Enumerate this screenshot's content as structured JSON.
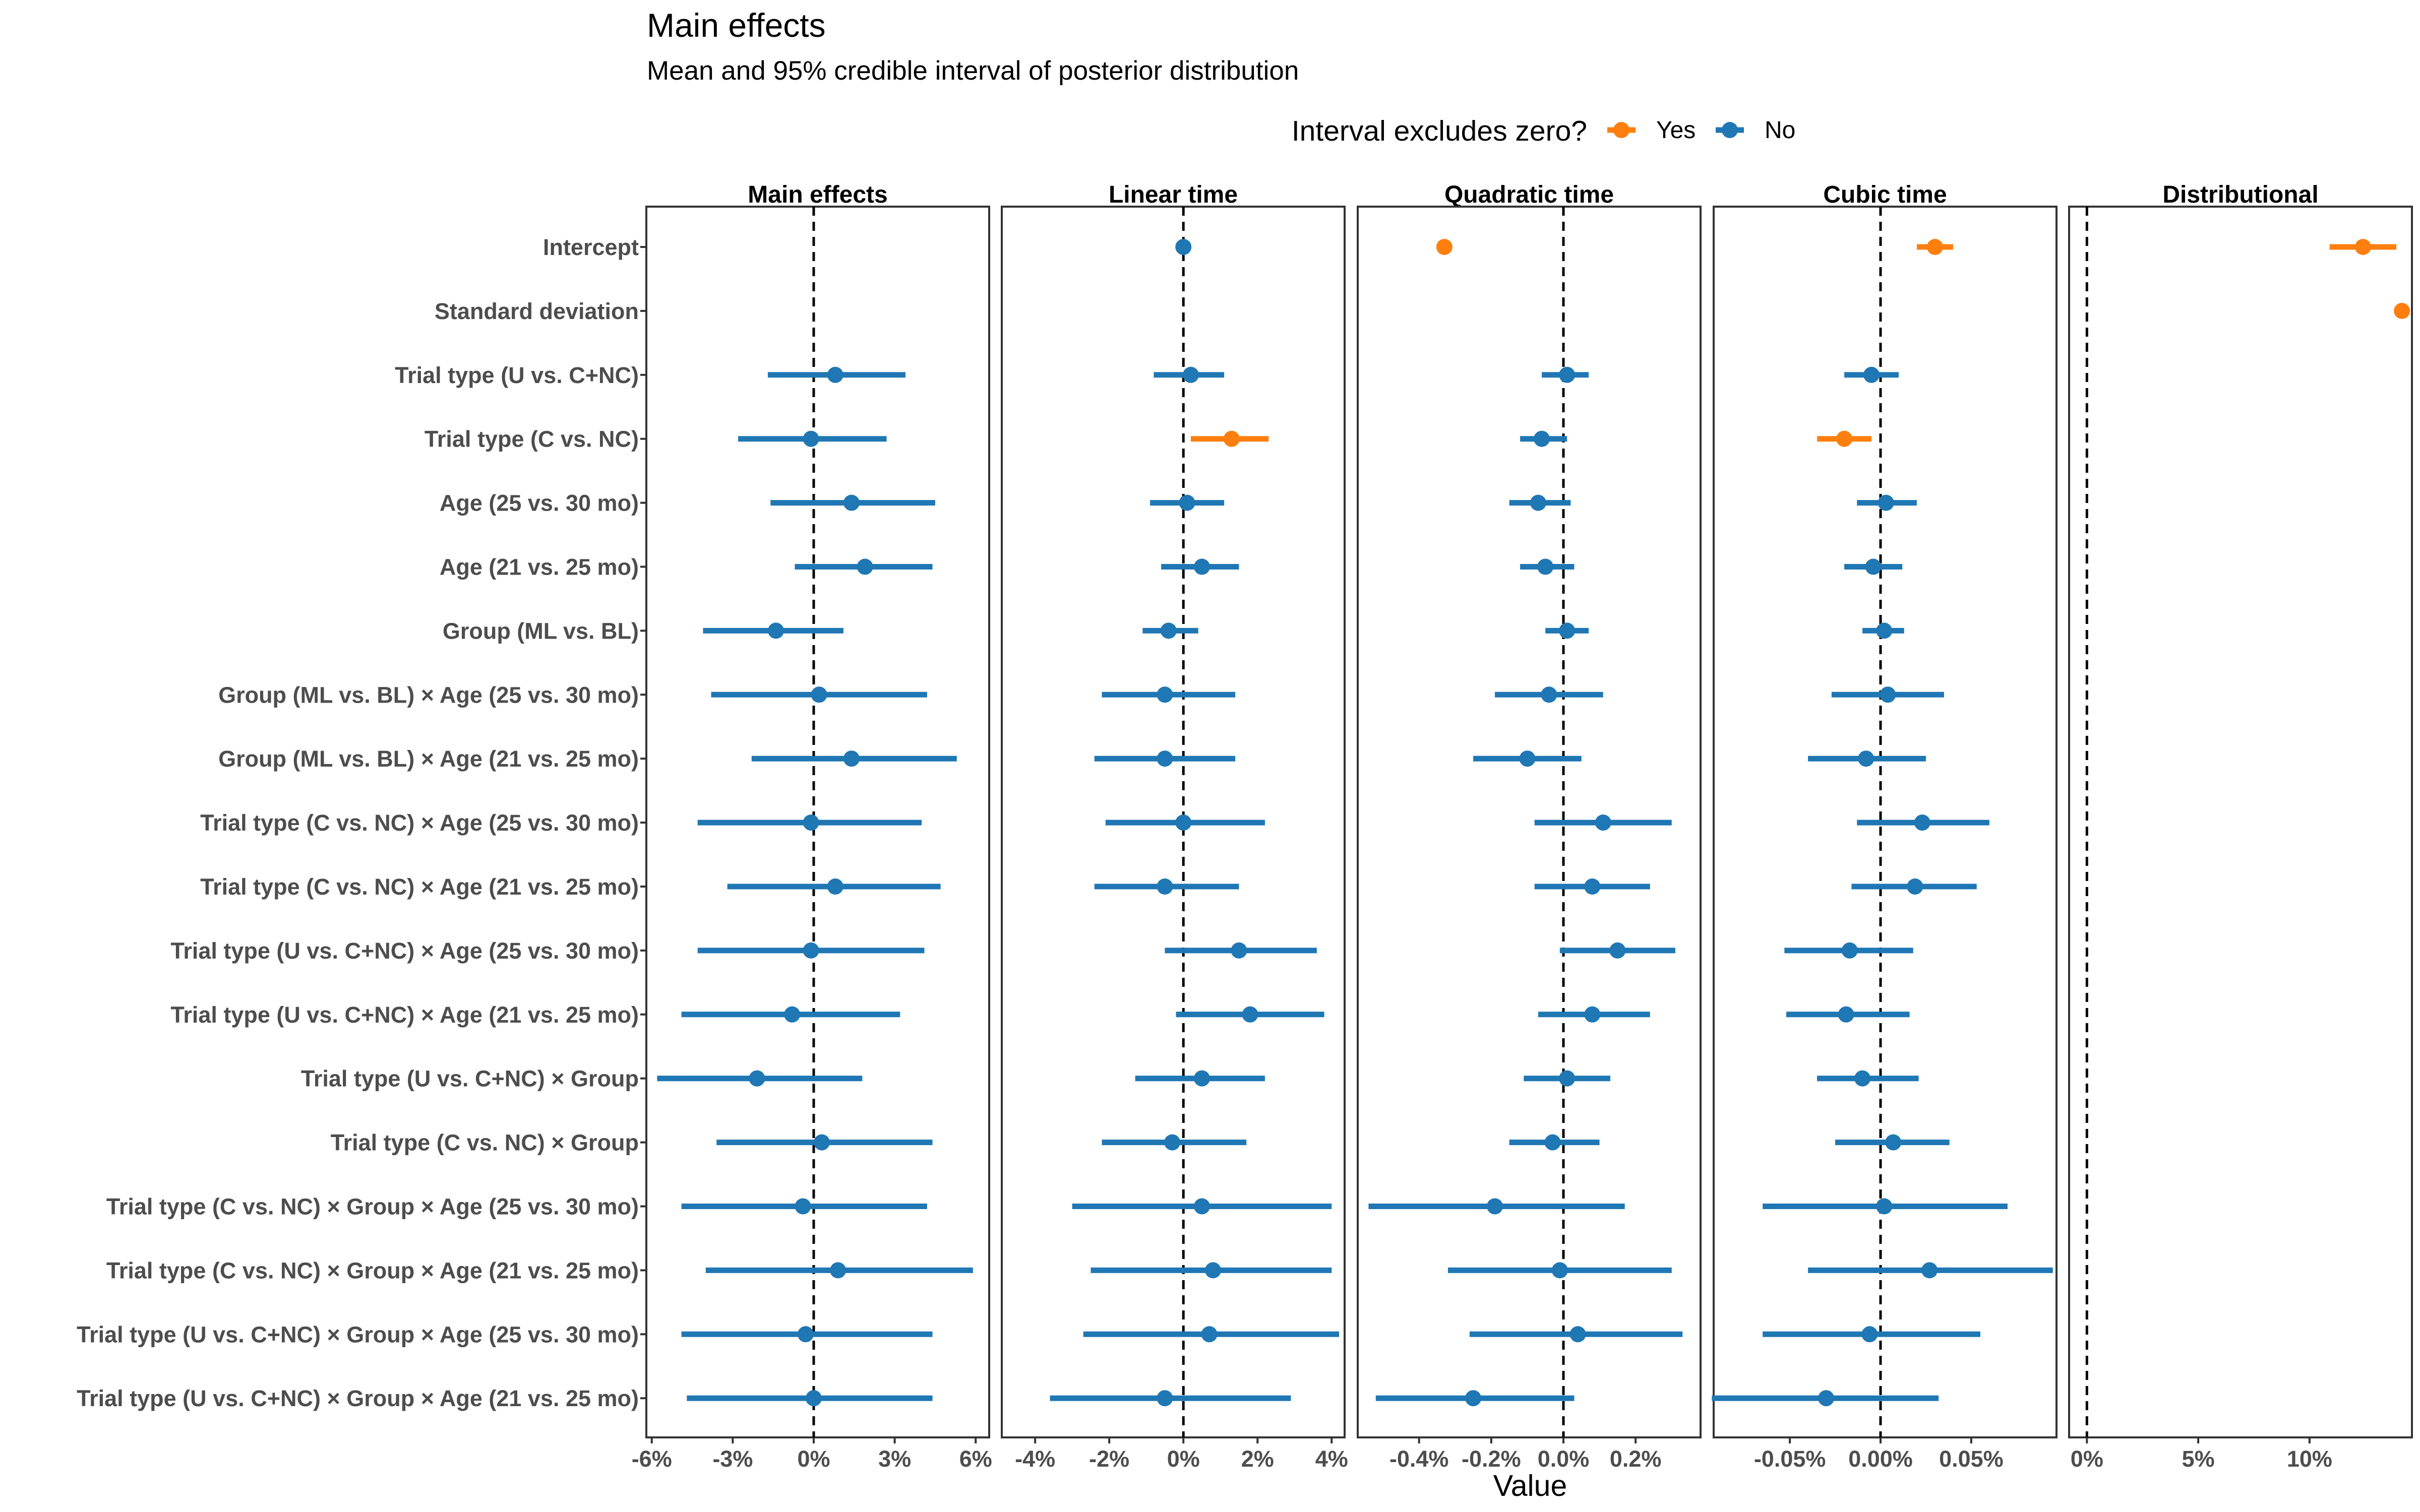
{
  "chart_data": {
    "type": "forest",
    "title": "Main effects",
    "subtitle": "Mean and 95% credible interval of posterior distribution",
    "xlabel": "Value",
    "legend": {
      "title": "Interval excludes zero?",
      "position": "top",
      "entries": [
        {
          "label": "Yes",
          "color": "#ff7f0e"
        },
        {
          "label": "No",
          "color": "#1f77b4"
        }
      ]
    },
    "colors": {
      "Yes": "#ff7f0e",
      "No": "#1f77b4"
    },
    "rows": [
      "Intercept",
      "Standard deviation",
      "Trial type (U vs. C+NC)",
      "Trial type (C vs. NC)",
      "Age (25 vs. 30 mo)",
      "Age (21 vs. 25 mo)",
      "Group (ML vs. BL)",
      "Group (ML vs. BL) × Age (25 vs. 30 mo)",
      "Group (ML vs. BL) × Age (21 vs. 25 mo)",
      "Trial type (C vs. NC) × Age (25 vs. 30 mo)",
      "Trial type (C vs. NC) × Age (21 vs. 25 mo)",
      "Trial type (U vs. C+NC) × Age (25 vs. 30 mo)",
      "Trial type (U vs. C+NC) × Age (21 vs. 25 mo)",
      "Trial type (U vs. C+NC) × Group",
      "Trial type (C vs. NC) × Group",
      "Trial type (C vs. NC) × Group × Age (25 vs. 30 mo)",
      "Trial type (C vs. NC) × Group × Age (21 vs. 25 mo)",
      "Trial type (U vs. C+NC) × Group × Age (25 vs. 30 mo)",
      "Trial type (U vs. C+NC) × Group × Age (21 vs. 25 mo)"
    ],
    "facets": [
      {
        "name": "Main effects",
        "xlim": [
          -0.062,
          0.065
        ],
        "ticks": [
          -0.06,
          -0.03,
          0,
          0.03,
          0.06
        ],
        "tick_labels": [
          "-6%",
          "-3%",
          "0%",
          "3%",
          "6%"
        ],
        "points": [
          {
            "row": "Trial type (U vs. C+NC)",
            "mean": 0.008,
            "lo": -0.017,
            "hi": 0.034,
            "excludes_zero": "No"
          },
          {
            "row": "Trial type (C vs. NC)",
            "mean": -0.001,
            "lo": -0.028,
            "hi": 0.027,
            "excludes_zero": "No"
          },
          {
            "row": "Age (25 vs. 30 mo)",
            "mean": 0.014,
            "lo": -0.016,
            "hi": 0.045,
            "excludes_zero": "No"
          },
          {
            "row": "Age (21 vs. 25 mo)",
            "mean": 0.019,
            "lo": -0.007,
            "hi": 0.044,
            "excludes_zero": "No"
          },
          {
            "row": "Group (ML vs. BL)",
            "mean": -0.014,
            "lo": -0.041,
            "hi": 0.011,
            "excludes_zero": "No"
          },
          {
            "row": "Group (ML vs. BL) × Age (25 vs. 30 mo)",
            "mean": 0.002,
            "lo": -0.038,
            "hi": 0.042,
            "excludes_zero": "No"
          },
          {
            "row": "Group (ML vs. BL) × Age (21 vs. 25 mo)",
            "mean": 0.014,
            "lo": -0.023,
            "hi": 0.053,
            "excludes_zero": "No"
          },
          {
            "row": "Trial type (C vs. NC) × Age (25 vs. 30 mo)",
            "mean": -0.001,
            "lo": -0.043,
            "hi": 0.04,
            "excludes_zero": "No"
          },
          {
            "row": "Trial type (C vs. NC) × Age (21 vs. 25 mo)",
            "mean": 0.008,
            "lo": -0.032,
            "hi": 0.047,
            "excludes_zero": "No"
          },
          {
            "row": "Trial type (U vs. C+NC) × Age (25 vs. 30 mo)",
            "mean": -0.001,
            "lo": -0.043,
            "hi": 0.041,
            "excludes_zero": "No"
          },
          {
            "row": "Trial type (U vs. C+NC) × Age (21 vs. 25 mo)",
            "mean": -0.008,
            "lo": -0.049,
            "hi": 0.032,
            "excludes_zero": "No"
          },
          {
            "row": "Trial type (U vs. C+NC) × Group",
            "mean": -0.021,
            "lo": -0.058,
            "hi": 0.018,
            "excludes_zero": "No"
          },
          {
            "row": "Trial type (C vs. NC) × Group",
            "mean": 0.003,
            "lo": -0.036,
            "hi": 0.044,
            "excludes_zero": "No"
          },
          {
            "row": "Trial type (C vs. NC) × Group × Age (25 vs. 30 mo)",
            "mean": -0.004,
            "lo": -0.049,
            "hi": 0.042,
            "excludes_zero": "No"
          },
          {
            "row": "Trial type (C vs. NC) × Group × Age (21 vs. 25 mo)",
            "mean": 0.009,
            "lo": -0.04,
            "hi": 0.059,
            "excludes_zero": "No"
          },
          {
            "row": "Trial type (U vs. C+NC) × Group × Age (25 vs. 30 mo)",
            "mean": -0.003,
            "lo": -0.049,
            "hi": 0.044,
            "excludes_zero": "No"
          },
          {
            "row": "Trial type (U vs. C+NC) × Group × Age (21 vs. 25 mo)",
            "mean": 0.0,
            "lo": -0.047,
            "hi": 0.044,
            "excludes_zero": "No"
          }
        ]
      },
      {
        "name": "Linear time",
        "xlim": [
          -0.049,
          0.0435
        ],
        "ticks": [
          -0.04,
          -0.02,
          0,
          0.02,
          0.04
        ],
        "tick_labels": [
          "-4%",
          "-2%",
          "0%",
          "2%",
          "4%"
        ],
        "points": [
          {
            "row": "Intercept",
            "mean": 0.0,
            "lo": -0.0015,
            "hi": 0.0015,
            "excludes_zero": "No"
          },
          {
            "row": "Trial type (U vs. C+NC)",
            "mean": 0.002,
            "lo": -0.008,
            "hi": 0.011,
            "excludes_zero": "No"
          },
          {
            "row": "Trial type (C vs. NC)",
            "mean": 0.013,
            "lo": 0.002,
            "hi": 0.023,
            "excludes_zero": "Yes"
          },
          {
            "row": "Age (25 vs. 30 mo)",
            "mean": 0.001,
            "lo": -0.009,
            "hi": 0.011,
            "excludes_zero": "No"
          },
          {
            "row": "Age (21 vs. 25 mo)",
            "mean": 0.005,
            "lo": -0.006,
            "hi": 0.015,
            "excludes_zero": "No"
          },
          {
            "row": "Group (ML vs. BL)",
            "mean": -0.004,
            "lo": -0.011,
            "hi": 0.004,
            "excludes_zero": "No"
          },
          {
            "row": "Group (ML vs. BL) × Age (25 vs. 30 mo)",
            "mean": -0.005,
            "lo": -0.022,
            "hi": 0.014,
            "excludes_zero": "No"
          },
          {
            "row": "Group (ML vs. BL) × Age (21 vs. 25 mo)",
            "mean": -0.005,
            "lo": -0.024,
            "hi": 0.014,
            "excludes_zero": "No"
          },
          {
            "row": "Trial type (C vs. NC) × Age (25 vs. 30 mo)",
            "mean": 0.0,
            "lo": -0.021,
            "hi": 0.022,
            "excludes_zero": "No"
          },
          {
            "row": "Trial type (C vs. NC) × Age (21 vs. 25 mo)",
            "mean": -0.005,
            "lo": -0.024,
            "hi": 0.015,
            "excludes_zero": "No"
          },
          {
            "row": "Trial type (U vs. C+NC) × Age (25 vs. 30 mo)",
            "mean": 0.015,
            "lo": -0.005,
            "hi": 0.036,
            "excludes_zero": "No"
          },
          {
            "row": "Trial type (U vs. C+NC) × Age (21 vs. 25 mo)",
            "mean": 0.018,
            "lo": -0.002,
            "hi": 0.038,
            "excludes_zero": "No"
          },
          {
            "row": "Trial type (U vs. C+NC) × Group",
            "mean": 0.005,
            "lo": -0.013,
            "hi": 0.022,
            "excludes_zero": "No"
          },
          {
            "row": "Trial type (C vs. NC) × Group",
            "mean": -0.003,
            "lo": -0.022,
            "hi": 0.017,
            "excludes_zero": "No"
          },
          {
            "row": "Trial type (C vs. NC) × Group × Age (25 vs. 30 mo)",
            "mean": 0.005,
            "lo": -0.03,
            "hi": 0.04,
            "excludes_zero": "No"
          },
          {
            "row": "Trial type (C vs. NC) × Group × Age (21 vs. 25 mo)",
            "mean": 0.008,
            "lo": -0.025,
            "hi": 0.04,
            "excludes_zero": "No"
          },
          {
            "row": "Trial type (U vs. C+NC) × Group × Age (25 vs. 30 mo)",
            "mean": 0.007,
            "lo": -0.027,
            "hi": 0.042,
            "excludes_zero": "No"
          },
          {
            "row": "Trial type (U vs. C+NC) × Group × Age (21 vs. 25 mo)",
            "mean": -0.005,
            "lo": -0.036,
            "hi": 0.029,
            "excludes_zero": "No"
          }
        ]
      },
      {
        "name": "Quadratic time",
        "xlim": [
          -0.0057,
          0.0038
        ],
        "ticks": [
          -0.004,
          -0.002,
          0,
          0.002
        ],
        "tick_labels": [
          "-0.4%",
          "-0.2%",
          "0.0%",
          "0.2%"
        ],
        "points": [
          {
            "row": "Intercept",
            "mean": -0.0033,
            "lo": -0.0035,
            "hi": -0.0031,
            "excludes_zero": "Yes"
          },
          {
            "row": "Trial type (U vs. C+NC)",
            "mean": 0.0001,
            "lo": -0.0006,
            "hi": 0.0007,
            "excludes_zero": "No"
          },
          {
            "row": "Trial type (C vs. NC)",
            "mean": -0.0006,
            "lo": -0.0012,
            "hi": 0.0001,
            "excludes_zero": "No"
          },
          {
            "row": "Age (25 vs. 30 mo)",
            "mean": -0.0007,
            "lo": -0.0015,
            "hi": 0.0002,
            "excludes_zero": "No"
          },
          {
            "row": "Age (21 vs. 25 mo)",
            "mean": -0.0005,
            "lo": -0.0012,
            "hi": 0.0003,
            "excludes_zero": "No"
          },
          {
            "row": "Group (ML vs. BL)",
            "mean": 0.0001,
            "lo": -0.0005,
            "hi": 0.0007,
            "excludes_zero": "No"
          },
          {
            "row": "Group (ML vs. BL) × Age (25 vs. 30 mo)",
            "mean": -0.0004,
            "lo": -0.0019,
            "hi": 0.0011,
            "excludes_zero": "No"
          },
          {
            "row": "Group (ML vs. BL) × Age (21 vs. 25 mo)",
            "mean": -0.001,
            "lo": -0.0025,
            "hi": 0.0005,
            "excludes_zero": "No"
          },
          {
            "row": "Trial type (C vs. NC) × Age (25 vs. 30 mo)",
            "mean": 0.0011,
            "lo": -0.0008,
            "hi": 0.003,
            "excludes_zero": "No"
          },
          {
            "row": "Trial type (C vs. NC) × Age (21 vs. 25 mo)",
            "mean": 0.0008,
            "lo": -0.0008,
            "hi": 0.0024,
            "excludes_zero": "No"
          },
          {
            "row": "Trial type (U vs. C+NC) × Age (25 vs. 30 mo)",
            "mean": 0.0015,
            "lo": -0.0001,
            "hi": 0.0031,
            "excludes_zero": "No"
          },
          {
            "row": "Trial type (U vs. C+NC) × Age (21 vs. 25 mo)",
            "mean": 0.0008,
            "lo": -0.0007,
            "hi": 0.0024,
            "excludes_zero": "No"
          },
          {
            "row": "Trial type (U vs. C+NC) × Group",
            "mean": 0.0001,
            "lo": -0.0011,
            "hi": 0.0013,
            "excludes_zero": "No"
          },
          {
            "row": "Trial type (C vs. NC) × Group",
            "mean": -0.0003,
            "lo": -0.0015,
            "hi": 0.001,
            "excludes_zero": "No"
          },
          {
            "row": "Trial type (C vs. NC) × Group × Age (25 vs. 30 mo)",
            "mean": -0.0019,
            "lo": -0.0054,
            "hi": 0.0017,
            "excludes_zero": "No"
          },
          {
            "row": "Trial type (C vs. NC) × Group × Age (21 vs. 25 mo)",
            "mean": -0.0001,
            "lo": -0.0032,
            "hi": 0.003,
            "excludes_zero": "No"
          },
          {
            "row": "Trial type (U vs. C+NC) × Group × Age (25 vs. 30 mo)",
            "mean": 0.0004,
            "lo": -0.0026,
            "hi": 0.0033,
            "excludes_zero": "No"
          },
          {
            "row": "Trial type (U vs. C+NC) × Group × Age (21 vs. 25 mo)",
            "mean": -0.0025,
            "lo": -0.0052,
            "hi": 0.0003,
            "excludes_zero": "No"
          }
        ]
      },
      {
        "name": "Cubic time",
        "xlim": [
          -0.00092,
          0.00097
        ],
        "ticks": [
          -0.0005,
          0,
          0.0005
        ],
        "tick_labels": [
          "-0.05%",
          "0.00%",
          "0.05%"
        ],
        "points": [
          {
            "row": "Intercept",
            "mean": 0.0003,
            "lo": 0.0002,
            "hi": 0.0004,
            "excludes_zero": "Yes"
          },
          {
            "row": "Trial type (U vs. C+NC)",
            "mean": -5e-05,
            "lo": -0.0002,
            "hi": 0.0001,
            "excludes_zero": "No"
          },
          {
            "row": "Trial type (C vs. NC)",
            "mean": -0.0002,
            "lo": -0.00035,
            "hi": -5e-05,
            "excludes_zero": "Yes"
          },
          {
            "row": "Age (25 vs. 30 mo)",
            "mean": 3e-05,
            "lo": -0.00013,
            "hi": 0.0002,
            "excludes_zero": "No"
          },
          {
            "row": "Age (21 vs. 25 mo)",
            "mean": -4e-05,
            "lo": -0.0002,
            "hi": 0.00012,
            "excludes_zero": "No"
          },
          {
            "row": "Group (ML vs. BL)",
            "mean": 2e-05,
            "lo": -0.0001,
            "hi": 0.00013,
            "excludes_zero": "No"
          },
          {
            "row": "Group (ML vs. BL) × Age (25 vs. 30 mo)",
            "mean": 4e-05,
            "lo": -0.00027,
            "hi": 0.00035,
            "excludes_zero": "No"
          },
          {
            "row": "Group (ML vs. BL) × Age (21 vs. 25 mo)",
            "mean": -8e-05,
            "lo": -0.0004,
            "hi": 0.00025,
            "excludes_zero": "No"
          },
          {
            "row": "Trial type (C vs. NC) × Age (25 vs. 30 mo)",
            "mean": 0.00023,
            "lo": -0.00013,
            "hi": 0.0006,
            "excludes_zero": "No"
          },
          {
            "row": "Trial type (C vs. NC) × Age (21 vs. 25 mo)",
            "mean": 0.00019,
            "lo": -0.00016,
            "hi": 0.00053,
            "excludes_zero": "No"
          },
          {
            "row": "Trial type (U vs. C+NC) × Age (25 vs. 30 mo)",
            "mean": -0.00017,
            "lo": -0.00053,
            "hi": 0.00018,
            "excludes_zero": "No"
          },
          {
            "row": "Trial type (U vs. C+NC) × Age (21 vs. 25 mo)",
            "mean": -0.00019,
            "lo": -0.00052,
            "hi": 0.00016,
            "excludes_zero": "No"
          },
          {
            "row": "Trial type (U vs. C+NC) × Group",
            "mean": -0.0001,
            "lo": -0.00035,
            "hi": 0.00021,
            "excludes_zero": "No"
          },
          {
            "row": "Trial type (C vs. NC) × Group",
            "mean": 7e-05,
            "lo": -0.00025,
            "hi": 0.00038,
            "excludes_zero": "No"
          },
          {
            "row": "Trial type (C vs. NC) × Group × Age (25 vs. 30 mo)",
            "mean": 2e-05,
            "lo": -0.00065,
            "hi": 0.0007,
            "excludes_zero": "No"
          },
          {
            "row": "Trial type (C vs. NC) × Group × Age (21 vs. 25 mo)",
            "mean": 0.00027,
            "lo": -0.0004,
            "hi": 0.00095,
            "excludes_zero": "No"
          },
          {
            "row": "Trial type (U vs. C+NC) × Group × Age (25 vs. 30 mo)",
            "mean": -6e-05,
            "lo": -0.00065,
            "hi": 0.00055,
            "excludes_zero": "No"
          },
          {
            "row": "Trial type (U vs. C+NC) × Group × Age (21 vs. 25 mo)",
            "mean": -0.0003,
            "lo": -0.00093,
            "hi": 0.00032,
            "excludes_zero": "No"
          }
        ]
      },
      {
        "name": "Distributional",
        "xlim": [
          -0.008,
          0.146
        ],
        "ticks": [
          0,
          0.05,
          0.1
        ],
        "tick_labels": [
          "0%",
          "5%",
          "10%"
        ],
        "points": [
          {
            "row": "Intercept",
            "mean": 0.124,
            "lo": 0.109,
            "hi": 0.139,
            "excludes_zero": "Yes"
          },
          {
            "row": "Standard deviation",
            "mean": 0.1415,
            "lo": 0.141,
            "hi": 0.142,
            "excludes_zero": "Yes"
          }
        ]
      }
    ]
  }
}
